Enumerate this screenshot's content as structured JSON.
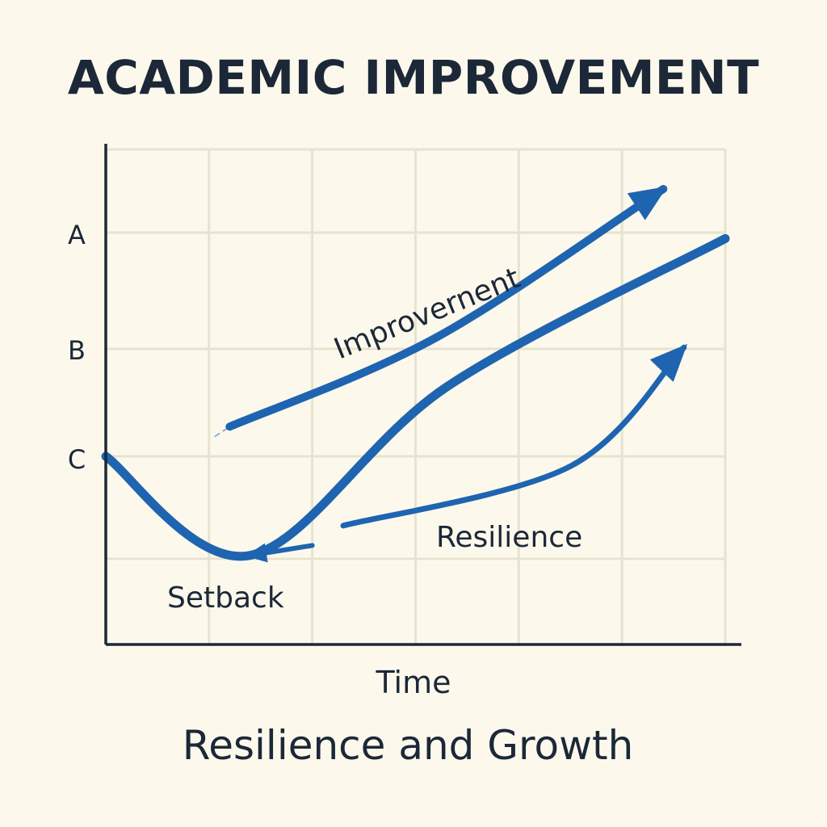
{
  "chart_data": {
    "type": "line",
    "title": "ACADEMIC IMPROVEMENT",
    "subtitle": "Resilience and Growth",
    "xlabel": "Time",
    "ylabel": "",
    "y_tick_labels": [
      "A",
      "B",
      "C"
    ],
    "grid": true,
    "colors": {
      "line": "#1f64b0",
      "text": "#1c2838",
      "grid": "#e7e3cf",
      "background": "#fcf9ec"
    },
    "annotations": [
      {
        "id": "improvement",
        "text": "Improvernent"
      },
      {
        "id": "resilience",
        "text": "Resilience"
      },
      {
        "id": "setback",
        "text": "Setback"
      }
    ],
    "series": [
      {
        "id": "main",
        "points": [
          [
            0,
            1.9
          ],
          [
            1.4,
            0.9
          ],
          [
            3.3,
            2.6
          ],
          [
            6.0,
            4.1
          ]
        ],
        "arrow_end": false
      },
      {
        "id": "improvement",
        "points": [
          [
            1.2,
            2.2
          ],
          [
            3.2,
            3.1
          ],
          [
            5.4,
            4.6
          ]
        ],
        "arrow_end": true,
        "faded_start": true
      },
      {
        "id": "resilience",
        "points": [
          [
            2.3,
            1.2
          ],
          [
            4.5,
            1.8
          ],
          [
            5.6,
            3.0
          ]
        ],
        "arrow_end": true
      },
      {
        "id": "setback_return",
        "points": [
          [
            2.0,
            1.0
          ],
          [
            1.4,
            0.9
          ]
        ],
        "arrow_end": true
      }
    ]
  }
}
